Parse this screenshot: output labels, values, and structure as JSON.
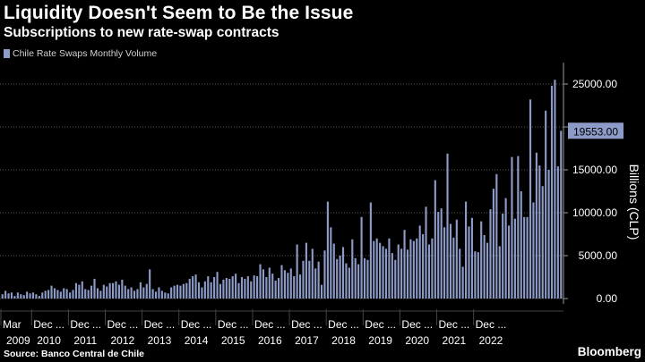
{
  "header": {
    "title": "Liquidity Doesn't Seem to Be the Issue",
    "subtitle": "Subscriptions to new rate-swap contracts"
  },
  "legend": {
    "label": "Chile Rate Swaps Monthly Volume"
  },
  "footer": {
    "source": "Source: Banco Central de Chile",
    "brand": "Bloomberg"
  },
  "colors": {
    "background": "#000000",
    "bar": "#8d9bc9",
    "grid": "#555555",
    "text": "#ffffff",
    "callout": "#8d9bc9"
  },
  "chart_data": {
    "type": "bar",
    "title": "",
    "xlabel": "",
    "ylabel": "Billions (CLP)",
    "ylim": [
      0,
      27500
    ],
    "yticks": [
      "0.00",
      "5000.00",
      "10000.00",
      "15000.00",
      "20000.00",
      "25000.00"
    ],
    "grid": true,
    "legend_position": "top-left",
    "start": "2009-03",
    "end": "2022-06",
    "x_tick_labels": [
      "Mar",
      "Dec ...",
      "Dec ...",
      "Dec ...",
      "Dec ...",
      "Dec ...",
      "Dec ...",
      "Dec ...",
      "Dec ...",
      "Dec ...",
      "Dec ...",
      "Dec ...",
      "Dec ...",
      "Dec ..."
    ],
    "x_year_labels": [
      "2009",
      "2010",
      "2011",
      "2012",
      "2013",
      "2014",
      "2015",
      "2016",
      "2017",
      "2018",
      "2019",
      "2020",
      "2021",
      "2022"
    ],
    "last_value_label": "19553.00",
    "series": [
      {
        "name": "Chile Rate Swaps Monthly Volume",
        "values": [
          500,
          900,
          600,
          700,
          300,
          700,
          500,
          400,
          800,
          600,
          700,
          500,
          300,
          700,
          900,
          1000,
          1500,
          1200,
          1000,
          800,
          1200,
          1100,
          700,
          1000,
          1800,
          1600,
          2000,
          1100,
          1000,
          1500,
          2300,
          1200,
          900,
          1600,
          1400,
          1800,
          1800,
          2000,
          1600,
          2200,
          1500,
          1100,
          1300,
          900,
          1100,
          1900,
          1300,
          1700,
          3400,
          1100,
          800,
          1300,
          900,
          700,
          600,
          1300,
          1500,
          1600,
          1500,
          1700,
          1800,
          2300,
          2600,
          2800,
          1900,
          1300,
          2000,
          2600,
          1900,
          2500,
          3100,
          1700,
          2200,
          2400,
          2300,
          2600,
          2900,
          1800,
          2500,
          2300,
          2600,
          2000,
          2700,
          2600,
          4000,
          3400,
          2500,
          3600,
          2900,
          2100,
          2400,
          3900,
          3300,
          3000,
          3500,
          2600,
          6300,
          2800,
          4400,
          6500,
          4400,
          5800,
          3500,
          4300,
          1600,
          5600,
          11300,
          8300,
          6400,
          4600,
          5000,
          6000,
          4100,
          3600,
          6900,
          4700,
          4000,
          9500,
          4700,
          4500,
          11200,
          6700,
          7000,
          6500,
          6100,
          5800,
          7000,
          5300,
          4500,
          6300,
          5800,
          8000,
          5700,
          6900,
          6700,
          7000,
          8500,
          7500,
          10700,
          6300,
          7000,
          13800,
          10100,
          10500,
          8300,
          16900,
          8700,
          7100,
          9200,
          5800,
          3700,
          11300,
          8400,
          9400,
          5500,
          5400,
          9000,
          7400,
          6500,
          10400,
          12800,
          14500,
          6100,
          9900,
          11700,
          8500,
          16500,
          9300,
          16600,
          12500,
          9500,
          9500,
          23200,
          11200,
          17000,
          15500,
          13100,
          21900,
          15000,
          24800,
          25500,
          15400,
          19553
        ]
      }
    ]
  }
}
